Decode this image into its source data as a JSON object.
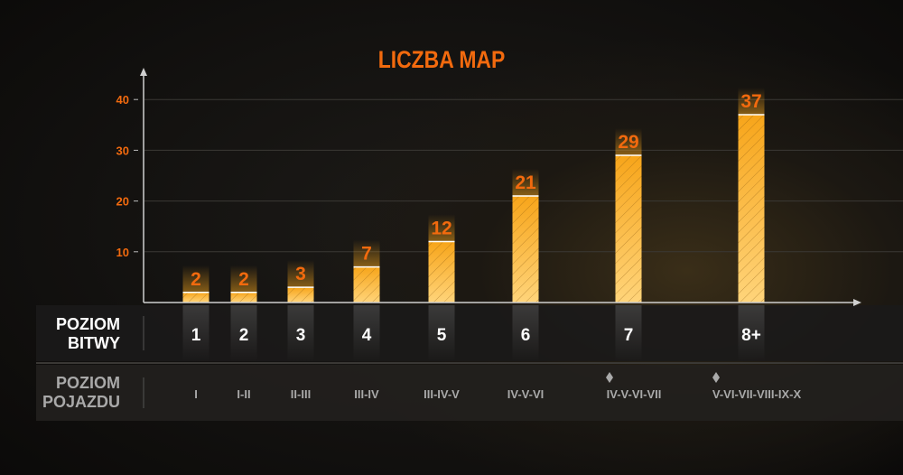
{
  "chart_data": {
    "type": "bar",
    "title": "LICZBA MAP",
    "categories": [
      "1",
      "2",
      "3",
      "4",
      "5",
      "6",
      "7",
      "8+"
    ],
    "values": [
      2,
      2,
      3,
      7,
      12,
      21,
      29,
      37
    ],
    "ylim": [
      0,
      45
    ],
    "yticks": [
      10,
      20,
      30,
      40
    ],
    "grid": true,
    "row_labels": {
      "battle_tier": [
        "POZIOM",
        "BITWY"
      ],
      "vehicle_tier": [
        "POZIOM",
        "POJAZDU"
      ]
    },
    "vehicle_tiers": [
      "I",
      "I-II",
      "II-III",
      "III-IV",
      "III-IV-V",
      "IV-V-VI",
      "IV-V-VI-VII",
      "V-VI-VII-VIII-IX-X"
    ],
    "vehicle_tier_markers": [
      false,
      false,
      false,
      false,
      false,
      false,
      true,
      true
    ],
    "colors": {
      "title": "#f26a0e",
      "bar_top": "#f7a51a",
      "bar_bottom": "#ffd47a",
      "axis": "#cfcfcf",
      "battle_text": "#ffffff",
      "vehicle_text": "#a9a9a9"
    }
  }
}
